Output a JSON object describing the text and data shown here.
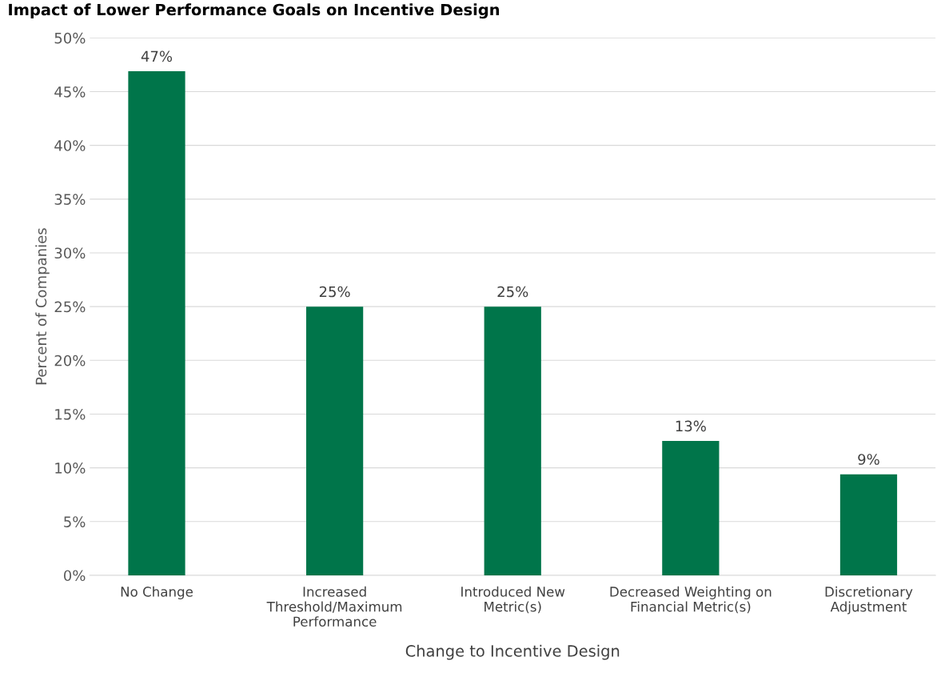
{
  "chart_data": {
    "type": "bar",
    "title": "Impact of Lower Performance Goals on Incentive Design",
    "xlabel": "Change to Incentive Design",
    "ylabel": "Percent of Companies",
    "categories": [
      "No Change",
      "Increased\nThreshold/Maximum\nPerformance",
      "Introduced New\nMetric(s)",
      "Decreased Weighting on\nFinancial Metric(s)",
      "Discretionary\nAdjustment"
    ],
    "values": [
      46.9,
      25,
      25,
      12.5,
      9.4
    ],
    "value_labels": [
      "47%",
      "25%",
      "25%",
      "13%",
      "9%"
    ],
    "color": "#00754a",
    "ylim": [
      0,
      50
    ],
    "yticks": [
      {
        "value": 0,
        "label": "0%"
      },
      {
        "value": 5,
        "label": "5%"
      },
      {
        "value": 10,
        "label": "10%"
      },
      {
        "value": 15,
        "label": "15%"
      },
      {
        "value": 20,
        "label": "20%"
      },
      {
        "value": 25,
        "label": "25%"
      },
      {
        "value": 30,
        "label": "30%"
      },
      {
        "value": 35,
        "label": "35%"
      },
      {
        "value": 40,
        "label": "40%"
      },
      {
        "value": 45,
        "label": "45%"
      },
      {
        "value": 50,
        "label": "50%"
      }
    ],
    "grid": "y",
    "legend": false
  }
}
